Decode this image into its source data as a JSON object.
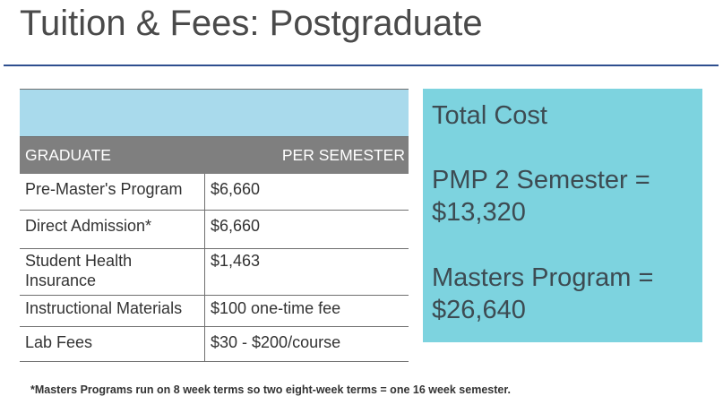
{
  "title": "Tuition & Fees: Postgraduate",
  "table": {
    "header_left": "GRADUATE",
    "header_right": "PER SEMESTER",
    "rows": [
      {
        "label": "Pre-Master's Program",
        "value": "$6,660"
      },
      {
        "label": "Direct Admission*",
        "value": "$6,660"
      },
      {
        "label": "Student Health Insurance",
        "value": "$1,463"
      },
      {
        "label": "Instructional Materials",
        "value": "$100 one-time fee"
      },
      {
        "label": "Lab Fees",
        "value": "$30 - $200/course"
      }
    ]
  },
  "total_panel": {
    "heading": "Total Cost",
    "pmp_line1": "PMP 2 Semester =",
    "pmp_line2": "$13,320",
    "masters_line1": "Masters Program =",
    "masters_line2": "$26,640"
  },
  "footnote": "*Masters Programs run on 8 week terms so two eight-week terms =  one 16 week semester.",
  "colors": {
    "rule": "#2e4f8f",
    "table_banner": "#a9daec",
    "table_header": "#7f7f7f",
    "total_panel": "#7dd3df"
  }
}
